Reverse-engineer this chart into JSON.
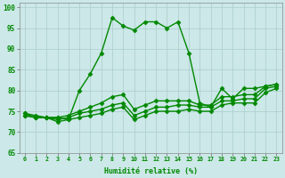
{
  "xlabel": "Humidité relative (%)",
  "background_color": "#cce8e8",
  "grid_color": "#aacccc",
  "line_color": "#008800",
  "marker": "D",
  "markersize": 2.5,
  "linewidth": 1.0,
  "xlim": [
    -0.5,
    23.5
  ],
  "ylim": [
    65,
    101
  ],
  "yticks": [
    65,
    70,
    75,
    80,
    85,
    90,
    95,
    100
  ],
  "xticks": [
    0,
    1,
    2,
    3,
    4,
    5,
    6,
    7,
    8,
    9,
    10,
    11,
    12,
    13,
    14,
    15,
    16,
    17,
    18,
    19,
    20,
    21,
    22,
    23
  ],
  "series": [
    [
      74.5,
      74.0,
      73.5,
      73.5,
      73.0,
      80.0,
      84.0,
      89.0,
      97.5,
      95.5,
      94.5,
      96.5,
      96.5,
      95.0,
      96.5,
      89.0,
      77.0,
      76.0,
      80.5,
      78.0,
      80.5,
      80.5,
      81.0,
      81.5
    ],
    [
      74.5,
      73.5,
      73.5,
      73.5,
      74.0,
      75.0,
      76.0,
      77.0,
      78.5,
      79.0,
      75.5,
      76.5,
      77.5,
      77.5,
      77.5,
      77.5,
      76.5,
      76.5,
      78.5,
      78.5,
      79.0,
      79.0,
      81.0,
      81.5
    ],
    [
      74.0,
      73.5,
      73.5,
      73.0,
      73.5,
      74.5,
      75.0,
      75.5,
      76.5,
      77.0,
      74.0,
      75.0,
      76.0,
      76.0,
      76.5,
      76.5,
      76.0,
      76.0,
      77.5,
      77.5,
      78.0,
      78.0,
      80.5,
      81.0
    ],
    [
      74.0,
      73.5,
      73.5,
      72.5,
      73.0,
      73.5,
      74.0,
      74.5,
      75.5,
      76.0,
      73.0,
      74.0,
      75.0,
      75.0,
      75.0,
      75.5,
      75.0,
      75.0,
      76.5,
      77.0,
      77.0,
      77.0,
      79.5,
      80.5
    ]
  ]
}
